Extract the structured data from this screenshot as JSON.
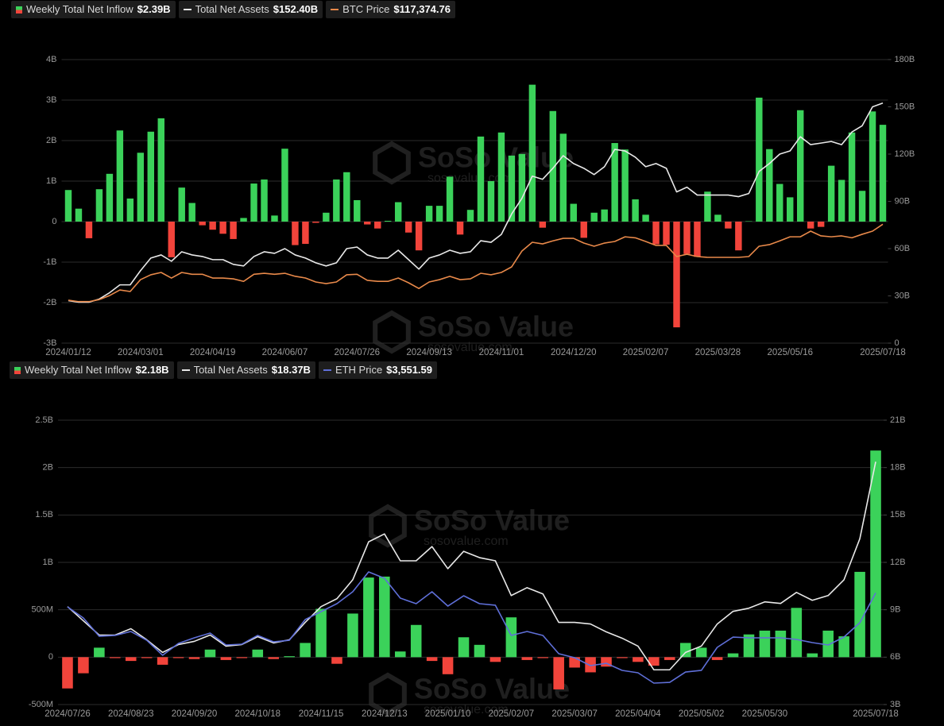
{
  "chart_data": [
    {
      "type": "combo",
      "watermark": {
        "brand": "SoSo Value",
        "site": "sosovalue.com"
      },
      "categories": [
        "2024/01/12",
        null,
        null,
        null,
        null,
        null,
        null,
        "2024/03/01",
        null,
        null,
        null,
        null,
        null,
        null,
        "2024/04/19",
        null,
        null,
        null,
        null,
        null,
        null,
        "2024/06/07",
        null,
        null,
        null,
        null,
        null,
        null,
        "2024/07/26",
        null,
        null,
        null,
        null,
        null,
        null,
        "2024/09/13",
        null,
        null,
        null,
        null,
        null,
        null,
        "2024/11/01",
        null,
        null,
        null,
        null,
        null,
        null,
        "2024/12/20",
        null,
        null,
        null,
        null,
        null,
        null,
        "2025/02/07",
        null,
        null,
        null,
        null,
        null,
        null,
        "2025/03/28",
        null,
        null,
        null,
        null,
        null,
        null,
        "2025/05/16",
        null,
        null,
        null,
        null,
        null,
        null,
        null,
        null,
        "2025/07/18"
      ],
      "ylim": [
        -3,
        4
      ],
      "yticks": [
        {
          "value": -3,
          "label": "-3B"
        },
        {
          "value": -2,
          "label": "-2B"
        },
        {
          "value": -1,
          "label": "-1B"
        },
        0,
        {
          "value": 1,
          "label": "1B"
        },
        {
          "value": 2,
          "label": "2B"
        },
        {
          "value": 3,
          "label": "3B"
        },
        {
          "value": 4,
          "label": "4B"
        }
      ],
      "y2lim": [
        0,
        180
      ],
      "y2ticks": [
        0,
        {
          "value": 30,
          "label": "30B"
        },
        {
          "value": 60,
          "label": "60B"
        },
        {
          "value": 90,
          "label": "90B"
        },
        {
          "value": 120,
          "label": "120B"
        },
        {
          "value": 150,
          "label": "150B"
        },
        {
          "value": 180,
          "label": "180B"
        }
      ],
      "y3lim": [
        0,
        280000
      ],
      "grid": true,
      "series": [
        {
          "name": "Weekly Total Net Inflow",
          "legend_value": "$2.39B",
          "type": "bar",
          "color": "#3bd25a",
          "negative_color": "#f2443b",
          "values": [
            0.78,
            0.32,
            -0.41,
            0.8,
            1.18,
            2.25,
            0.57,
            1.7,
            2.22,
            2.55,
            -0.88,
            0.84,
            0.46,
            -0.09,
            -0.2,
            -0.3,
            -0.43,
            0.09,
            0.94,
            1.04,
            0.15,
            1.8,
            -0.58,
            -0.55,
            -0.03,
            0.22,
            1.04,
            1.22,
            0.53,
            -0.07,
            -0.17,
            0.02,
            0.48,
            -0.27,
            -0.71,
            0.39,
            0.39,
            1.11,
            -0.32,
            0.29,
            2.1,
            1.0,
            2.2,
            1.63,
            1.67,
            3.38,
            -0.15,
            2.73,
            2.17,
            0.44,
            -0.4,
            0.22,
            0.3,
            1.94,
            1.78,
            0.55,
            0.17,
            -0.56,
            -0.57,
            -2.61,
            -0.8,
            -0.87,
            0.74,
            0.17,
            -0.17,
            -0.71,
            0.01,
            3.06,
            1.79,
            0.93,
            0.6,
            2.75,
            -0.17,
            -0.13,
            1.38,
            1.03,
            2.2,
            0.76,
            2.72,
            2.39
          ]
        },
        {
          "name": "Total Net Assets",
          "legend_value": "$152.40B",
          "type": "line",
          "axis": "y2",
          "color": "#e8e8e8",
          "values": [
            27,
            26,
            26,
            28,
            32,
            37,
            37,
            46,
            54,
            56,
            52,
            58,
            56,
            55,
            53,
            53,
            50,
            49,
            55,
            58,
            57,
            60,
            56,
            54,
            51,
            49,
            51,
            60,
            61,
            56,
            54,
            54,
            59,
            53,
            47,
            54,
            56,
            59,
            57,
            58,
            65,
            64,
            69,
            82,
            92,
            106,
            104,
            111,
            119,
            114,
            111,
            107,
            112,
            123,
            122,
            118,
            112,
            114,
            111,
            96,
            99,
            94,
            94,
            94,
            94,
            93,
            95,
            109,
            114,
            120,
            122,
            131,
            126,
            127,
            128,
            126,
            134,
            138,
            150,
            152.4
          ]
        },
        {
          "name": "BTC Price",
          "legend_value": "$117,374.76",
          "type": "line",
          "axis": "y3",
          "color": "#e8894a",
          "values": [
            42400,
            41000,
            41000,
            43000,
            47000,
            52500,
            51000,
            62700,
            67500,
            69800,
            64300,
            69800,
            68000,
            68000,
            64300,
            64300,
            63500,
            61000,
            68000,
            69000,
            68000,
            69000,
            66000,
            64300,
            60400,
            58800,
            60400,
            67500,
            68000,
            62000,
            61000,
            61000,
            64300,
            59600,
            54000,
            60400,
            62700,
            66000,
            62700,
            63500,
            69000,
            67500,
            69800,
            75300,
            91000,
            99600,
            98000,
            101000,
            103500,
            103500,
            98800,
            95700,
            98800,
            100400,
            105000,
            104000,
            100400,
            96500,
            96500,
            85500,
            87800,
            85500,
            84700,
            84700,
            84700,
            84700,
            85500,
            95700,
            97300,
            101000,
            105000,
            105000,
            110600,
            105900,
            105000,
            105900,
            104000,
            107500,
            110600,
            117374.76
          ]
        }
      ]
    },
    {
      "type": "combo",
      "watermark": {
        "brand": "SoSo Value",
        "site": "sosovalue.com"
      },
      "categories": [
        "2024/07/26",
        null,
        null,
        null,
        "2024/08/23",
        null,
        null,
        null,
        "2024/09/20",
        null,
        null,
        null,
        "2024/10/18",
        null,
        null,
        null,
        "2024/11/15",
        null,
        null,
        null,
        "2024/12/13",
        null,
        null,
        null,
        "2025/01/10",
        null,
        null,
        null,
        "2025/02/07",
        null,
        null,
        null,
        "2025/03/07",
        null,
        null,
        null,
        "2025/04/04",
        null,
        null,
        null,
        "2025/05/02",
        null,
        null,
        null,
        "2025/05/30",
        null,
        null,
        null,
        null,
        null,
        null,
        "2025/07/18"
      ],
      "ylim": [
        -0.5,
        2.5
      ],
      "yticks": [
        {
          "value": -0.5,
          "label": "-500M"
        },
        0,
        {
          "value": 0.5,
          "label": "500M"
        },
        {
          "value": 1,
          "label": "1B"
        },
        {
          "value": 1.5,
          "label": "1.5B"
        },
        {
          "value": 2,
          "label": "2B"
        },
        {
          "value": 2.5,
          "label": "2.5B"
        }
      ],
      "y2lim": [
        3,
        21
      ],
      "y2ticks": [
        {
          "value": 3,
          "label": "3B"
        },
        {
          "value": 6,
          "label": "6B"
        },
        {
          "value": 9,
          "label": "9B"
        },
        {
          "value": 12,
          "label": "12B"
        },
        {
          "value": 15,
          "label": "15B"
        },
        {
          "value": 18,
          "label": "18B"
        },
        {
          "value": 21,
          "label": "21B"
        }
      ],
      "y3lim": [
        1000,
        7500
      ],
      "grid": true,
      "series": [
        {
          "name": "Weekly Total Net Inflow",
          "legend_value": "$2.18B",
          "type": "bar",
          "color": "#3bd25a",
          "negative_color": "#f2443b",
          "values": [
            -0.33,
            -0.17,
            0.1,
            -0.01,
            -0.04,
            -0.01,
            -0.08,
            -0.01,
            -0.02,
            0.08,
            -0.03,
            -0.01,
            0.08,
            -0.02,
            0.01,
            0.15,
            0.51,
            -0.07,
            0.46,
            0.84,
            0.85,
            0.06,
            0.34,
            -0.04,
            -0.18,
            0.21,
            0.13,
            -0.05,
            0.42,
            -0.03,
            -0.01,
            -0.34,
            -0.11,
            -0.16,
            -0.1,
            -0.01,
            -0.05,
            -0.09,
            -0.03,
            0.15,
            0.1,
            -0.03,
            0.04,
            0.24,
            0.28,
            0.28,
            0.52,
            0.04,
            0.28,
            0.22,
            0.9,
            2.18
          ]
        },
        {
          "name": "Total Net Assets",
          "legend_value": "$18.37B",
          "type": "line",
          "axis": "y2",
          "color": "#e8e8e8",
          "values": [
            9.2,
            8.3,
            7.4,
            7.4,
            7.8,
            7.1,
            6.3,
            6.8,
            7.0,
            7.4,
            6.7,
            6.8,
            7.3,
            6.9,
            7.1,
            8.2,
            9.2,
            9.7,
            10.9,
            13.3,
            13.8,
            12.1,
            12.1,
            13.0,
            11.6,
            12.7,
            12.3,
            12.1,
            9.9,
            10.4,
            10.0,
            8.2,
            8.2,
            8.1,
            7.6,
            7.2,
            6.7,
            5.2,
            5.2,
            6.3,
            6.7,
            8.1,
            8.9,
            9.1,
            9.5,
            9.4,
            10.1,
            9.6,
            9.9,
            10.9,
            13.5,
            18.37
          ]
        },
        {
          "name": "ETH Price",
          "legend_value": "$3,551.59",
          "type": "line",
          "axis": "y3",
          "color": "#5f6fd8",
          "values": [
            3233,
            2979,
            2561,
            2580,
            2670,
            2470,
            2126,
            2398,
            2525,
            2634,
            2362,
            2380,
            2580,
            2434,
            2470,
            2943,
            3124,
            3306,
            3578,
            4032,
            3887,
            3433,
            3306,
            3578,
            3251,
            3487,
            3306,
            3270,
            2580,
            2670,
            2580,
            2162,
            2071,
            1890,
            1944,
            1781,
            1726,
            1490,
            1508,
            1744,
            1781,
            2307,
            2543,
            2525,
            2525,
            2525,
            2489,
            2416,
            2362,
            2543,
            2870,
            3551.59
          ]
        }
      ]
    }
  ]
}
